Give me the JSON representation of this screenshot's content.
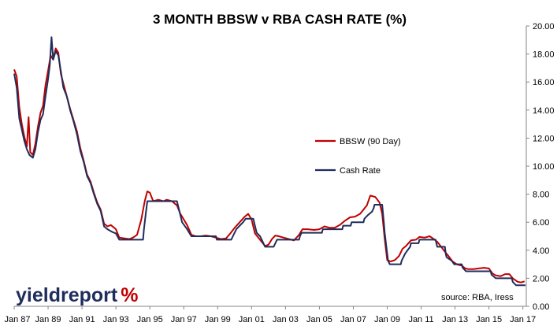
{
  "chart_data": {
    "type": "line",
    "title": "3 MONTH BBSW v RBA CASH RATE (%)",
    "xlabel": "",
    "ylabel": "",
    "xlim": [
      1987.0,
      2017.2
    ],
    "ylim": [
      0,
      20
    ],
    "y_ticks": [
      "0.00",
      "2.00",
      "4.00",
      "6.00",
      "8.00",
      "10.00",
      "12.00",
      "14.00",
      "16.00",
      "18.00",
      "20.00"
    ],
    "x_ticks": [
      "Jan 87",
      "Jan 89",
      "Jan 91",
      "Jan 93",
      "Jan 95",
      "Jan 97",
      "Jan 99",
      "Jan 01",
      "Jan 03",
      "Jan 05",
      "Jan 07",
      "Jan 09",
      "Jan 11",
      "Jan 13",
      "Jan 15",
      "Jan 17"
    ],
    "grid": false,
    "legend_position": "center-right",
    "series": [
      {
        "name": "BBSW (90 Day)",
        "color": "#c00000",
        "points": [
          [
            1987.0,
            16.9
          ],
          [
            1987.15,
            16.4
          ],
          [
            1987.3,
            14.2
          ],
          [
            1987.45,
            13.0
          ],
          [
            1987.6,
            12.1
          ],
          [
            1987.75,
            11.4
          ],
          [
            1987.85,
            13.5
          ],
          [
            1987.95,
            11.0
          ],
          [
            1988.1,
            10.8
          ],
          [
            1988.25,
            11.6
          ],
          [
            1988.4,
            12.8
          ],
          [
            1988.55,
            13.8
          ],
          [
            1988.7,
            14.3
          ],
          [
            1988.85,
            15.8
          ],
          [
            1989.0,
            16.8
          ],
          [
            1989.15,
            17.9
          ],
          [
            1989.3,
            17.6
          ],
          [
            1989.45,
            18.4
          ],
          [
            1989.6,
            18.1
          ],
          [
            1989.75,
            16.6
          ],
          [
            1989.9,
            15.9
          ],
          [
            1990.1,
            15.0
          ],
          [
            1990.3,
            14.1
          ],
          [
            1990.5,
            13.3
          ],
          [
            1990.7,
            12.5
          ],
          [
            1990.9,
            11.3
          ],
          [
            1991.1,
            10.4
          ],
          [
            1991.3,
            9.4
          ],
          [
            1991.5,
            8.9
          ],
          [
            1991.7,
            8.1
          ],
          [
            1991.9,
            7.4
          ],
          [
            1992.1,
            6.9
          ],
          [
            1992.3,
            5.9
          ],
          [
            1992.5,
            5.7
          ],
          [
            1992.7,
            5.8
          ],
          [
            1992.9,
            5.6
          ],
          [
            1993.0,
            5.5
          ],
          [
            1993.2,
            4.9
          ],
          [
            1993.5,
            4.85
          ],
          [
            1993.8,
            4.8
          ],
          [
            1994.0,
            4.9
          ],
          [
            1994.25,
            5.1
          ],
          [
            1994.5,
            6.2
          ],
          [
            1994.7,
            7.5
          ],
          [
            1994.85,
            8.2
          ],
          [
            1995.0,
            8.1
          ],
          [
            1995.2,
            7.5
          ],
          [
            1995.5,
            7.6
          ],
          [
            1995.8,
            7.5
          ],
          [
            1996.0,
            7.6
          ],
          [
            1996.3,
            7.5
          ],
          [
            1996.6,
            7.2
          ],
          [
            1996.8,
            6.6
          ],
          [
            1997.0,
            6.2
          ],
          [
            1997.2,
            5.8
          ],
          [
            1997.45,
            5.1
          ],
          [
            1997.7,
            5.0
          ],
          [
            1998.0,
            5.0
          ],
          [
            1998.3,
            5.05
          ],
          [
            1998.6,
            5.0
          ],
          [
            1998.9,
            4.9
          ],
          [
            1999.2,
            4.8
          ],
          [
            1999.5,
            4.85
          ],
          [
            1999.75,
            5.2
          ],
          [
            2000.0,
            5.6
          ],
          [
            2000.3,
            6.0
          ],
          [
            2000.6,
            6.4
          ],
          [
            2000.8,
            6.6
          ],
          [
            2001.0,
            6.2
          ],
          [
            2001.2,
            5.2
          ],
          [
            2001.4,
            4.9
          ],
          [
            2001.6,
            4.6
          ],
          [
            2001.8,
            4.3
          ],
          [
            2002.0,
            4.4
          ],
          [
            2002.2,
            4.8
          ],
          [
            2002.4,
            5.05
          ],
          [
            2002.6,
            5.0
          ],
          [
            2002.9,
            4.9
          ],
          [
            2003.2,
            4.8
          ],
          [
            2003.5,
            4.7
          ],
          [
            2003.8,
            5.1
          ],
          [
            2004.0,
            5.5
          ],
          [
            2004.3,
            5.5
          ],
          [
            2004.7,
            5.45
          ],
          [
            2005.0,
            5.5
          ],
          [
            2005.3,
            5.7
          ],
          [
            2005.6,
            5.6
          ],
          [
            2005.9,
            5.6
          ],
          [
            2006.2,
            5.8
          ],
          [
            2006.5,
            6.1
          ],
          [
            2006.8,
            6.35
          ],
          [
            2007.1,
            6.4
          ],
          [
            2007.4,
            6.6
          ],
          [
            2007.6,
            6.9
          ],
          [
            2007.8,
            7.2
          ],
          [
            2008.0,
            7.9
          ],
          [
            2008.3,
            7.8
          ],
          [
            2008.55,
            7.4
          ],
          [
            2008.7,
            6.6
          ],
          [
            2008.85,
            4.8
          ],
          [
            2009.0,
            3.3
          ],
          [
            2009.2,
            3.2
          ],
          [
            2009.45,
            3.3
          ],
          [
            2009.7,
            3.6
          ],
          [
            2009.9,
            4.1
          ],
          [
            2010.1,
            4.3
          ],
          [
            2010.4,
            4.7
          ],
          [
            2010.7,
            4.75
          ],
          [
            2010.9,
            4.95
          ],
          [
            2011.2,
            4.9
          ],
          [
            2011.5,
            5.0
          ],
          [
            2011.75,
            4.8
          ],
          [
            2011.95,
            4.6
          ],
          [
            2012.15,
            4.3
          ],
          [
            2012.4,
            3.9
          ],
          [
            2012.6,
            3.6
          ],
          [
            2012.85,
            3.2
          ],
          [
            2013.1,
            3.0
          ],
          [
            2013.4,
            2.9
          ],
          [
            2013.6,
            2.7
          ],
          [
            2013.8,
            2.65
          ],
          [
            2014.1,
            2.65
          ],
          [
            2014.4,
            2.7
          ],
          [
            2014.7,
            2.75
          ],
          [
            2015.0,
            2.7
          ],
          [
            2015.2,
            2.35
          ],
          [
            2015.4,
            2.2
          ],
          [
            2015.7,
            2.15
          ],
          [
            2015.95,
            2.3
          ],
          [
            2016.2,
            2.3
          ],
          [
            2016.4,
            2.0
          ],
          [
            2016.7,
            1.75
          ],
          [
            2016.9,
            1.7
          ],
          [
            2017.1,
            1.78
          ]
        ]
      },
      {
        "name": "Cash Rate",
        "color": "#1f2d5c",
        "points": [
          [
            1987.0,
            16.6
          ],
          [
            1987.15,
            15.6
          ],
          [
            1987.3,
            13.4
          ],
          [
            1987.45,
            12.6
          ],
          [
            1987.6,
            11.8
          ],
          [
            1987.75,
            11.2
          ],
          [
            1987.9,
            10.8
          ],
          [
            1988.1,
            10.6
          ],
          [
            1988.25,
            11.2
          ],
          [
            1988.4,
            12.4
          ],
          [
            1988.55,
            13.3
          ],
          [
            1988.7,
            13.7
          ],
          [
            1988.85,
            15.0
          ],
          [
            1989.0,
            16.2
          ],
          [
            1989.1,
            17.2
          ],
          [
            1989.2,
            19.2
          ],
          [
            1989.3,
            17.6
          ],
          [
            1989.45,
            18.2
          ],
          [
            1989.6,
            17.9
          ],
          [
            1989.75,
            16.8
          ],
          [
            1989.9,
            15.6
          ],
          [
            1990.1,
            15.0
          ],
          [
            1990.3,
            14.0
          ],
          [
            1990.5,
            13.2
          ],
          [
            1990.7,
            12.3
          ],
          [
            1990.9,
            11.1
          ],
          [
            1991.1,
            10.3
          ],
          [
            1991.3,
            9.3
          ],
          [
            1991.5,
            8.8
          ],
          [
            1991.7,
            8.0
          ],
          [
            1991.9,
            7.3
          ],
          [
            1992.1,
            6.8
          ],
          [
            1992.3,
            5.7
          ],
          [
            1992.5,
            5.5
          ],
          [
            1992.8,
            5.3
          ],
          [
            1993.0,
            5.2
          ],
          [
            1993.2,
            4.75
          ],
          [
            1994.6,
            4.75
          ],
          [
            1994.65,
            5.5
          ],
          [
            1994.75,
            6.5
          ],
          [
            1994.85,
            7.5
          ],
          [
            1996.6,
            7.5
          ],
          [
            1996.7,
            7.0
          ],
          [
            1996.9,
            6.0
          ],
          [
            1997.2,
            5.5
          ],
          [
            1997.45,
            5.0
          ],
          [
            1998.9,
            5.0
          ],
          [
            1998.95,
            4.75
          ],
          [
            1999.8,
            4.75
          ],
          [
            1999.9,
            5.0
          ],
          [
            2000.1,
            5.5
          ],
          [
            2000.3,
            5.75
          ],
          [
            2000.5,
            6.0
          ],
          [
            2000.65,
            6.25
          ],
          [
            2001.1,
            6.25
          ],
          [
            2001.2,
            5.75
          ],
          [
            2001.3,
            5.25
          ],
          [
            2001.5,
            5.0
          ],
          [
            2001.7,
            4.5
          ],
          [
            2001.8,
            4.25
          ],
          [
            2002.3,
            4.25
          ],
          [
            2002.4,
            4.5
          ],
          [
            2002.5,
            4.75
          ],
          [
            2003.8,
            4.75
          ],
          [
            2003.85,
            5.0
          ],
          [
            2003.95,
            5.25
          ],
          [
            2005.15,
            5.25
          ],
          [
            2005.2,
            5.5
          ],
          [
            2006.35,
            5.5
          ],
          [
            2006.4,
            5.75
          ],
          [
            2006.85,
            5.75
          ],
          [
            2006.9,
            6.0
          ],
          [
            2007.6,
            6.0
          ],
          [
            2007.65,
            6.25
          ],
          [
            2007.85,
            6.5
          ],
          [
            2008.1,
            6.75
          ],
          [
            2008.2,
            7.0
          ],
          [
            2008.25,
            7.25
          ],
          [
            2008.7,
            7.25
          ],
          [
            2008.8,
            6.0
          ],
          [
            2008.85,
            5.25
          ],
          [
            2008.95,
            4.25
          ],
          [
            2009.05,
            3.25
          ],
          [
            2009.15,
            3.0
          ],
          [
            2009.8,
            3.0
          ],
          [
            2009.85,
            3.25
          ],
          [
            2009.95,
            3.5
          ],
          [
            2010.05,
            3.75
          ],
          [
            2010.2,
            4.0
          ],
          [
            2010.35,
            4.25
          ],
          [
            2010.4,
            4.5
          ],
          [
            2010.85,
            4.5
          ],
          [
            2010.9,
            4.75
          ],
          [
            2011.85,
            4.75
          ],
          [
            2011.9,
            4.5
          ],
          [
            2011.95,
            4.25
          ],
          [
            2012.4,
            4.25
          ],
          [
            2012.45,
            3.75
          ],
          [
            2012.5,
            3.5
          ],
          [
            2012.8,
            3.25
          ],
          [
            2012.95,
            3.0
          ],
          [
            2013.4,
            3.0
          ],
          [
            2013.45,
            2.75
          ],
          [
            2013.65,
            2.5
          ],
          [
            2015.1,
            2.5
          ],
          [
            2015.15,
            2.25
          ],
          [
            2015.4,
            2.0
          ],
          [
            2016.35,
            2.0
          ],
          [
            2016.4,
            1.75
          ],
          [
            2016.6,
            1.5
          ],
          [
            2017.15,
            1.5
          ]
        ]
      }
    ]
  },
  "source_note": "source: RBA, Iress",
  "logo": {
    "text": "yieldreport",
    "symbol": "%"
  }
}
